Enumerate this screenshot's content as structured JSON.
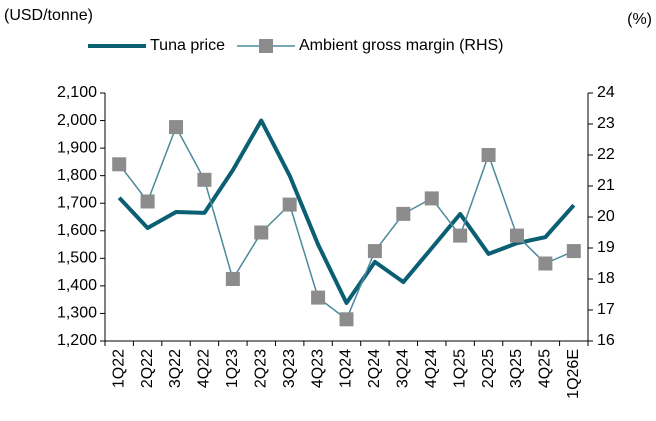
{
  "chart_data": {
    "type": "line",
    "y_label": "(USD/tonne)",
    "y2_label": "(%)",
    "categories": [
      "1Q22",
      "2Q22",
      "3Q22",
      "4Q22",
      "1Q23",
      "2Q23",
      "3Q23",
      "4Q23",
      "1Q24",
      "2Q24",
      "3Q24",
      "4Q24",
      "1Q25",
      "2Q25",
      "3Q25",
      "4Q25",
      "1Q26E"
    ],
    "series": [
      {
        "name": "Tuna price",
        "color": "#0b5f73",
        "values": [
          1720,
          1610,
          1668,
          1665,
          1820,
          2000,
          1800,
          1550,
          1338,
          1487,
          1414,
          1537,
          1661,
          1516,
          1555,
          1577,
          1693
        ]
      },
      {
        "name": "Ambient gross margin (RHS)",
        "color": "#4a8a9a",
        "marker_color": "#8c8c8c",
        "axis": "y2",
        "values": [
          21.7,
          20.5,
          22.9,
          21.2,
          18.0,
          19.5,
          20.4,
          17.4,
          16.7,
          18.9,
          20.1,
          20.6,
          19.4,
          22.0,
          19.4,
          18.5,
          18.9
        ]
      }
    ],
    "ylim": [
      1200,
      2100
    ],
    "yticks": [
      {
        "value": 1200,
        "label": "1,200"
      },
      {
        "value": 1300,
        "label": "1,300"
      },
      {
        "value": 1400,
        "label": "1,400"
      },
      {
        "value": 1500,
        "label": "1,500"
      },
      {
        "value": 1600,
        "label": "1,600"
      },
      {
        "value": 1700,
        "label": "1,700"
      },
      {
        "value": 1800,
        "label": "1,800"
      },
      {
        "value": 1900,
        "label": "1,900"
      },
      {
        "value": 2000,
        "label": "2,000"
      },
      {
        "value": 2100,
        "label": "2,100"
      }
    ],
    "y2lim": [
      16,
      24
    ],
    "y2ticks": [
      16,
      17,
      18,
      19,
      20,
      21,
      22,
      23,
      24
    ],
    "legend": "top"
  }
}
